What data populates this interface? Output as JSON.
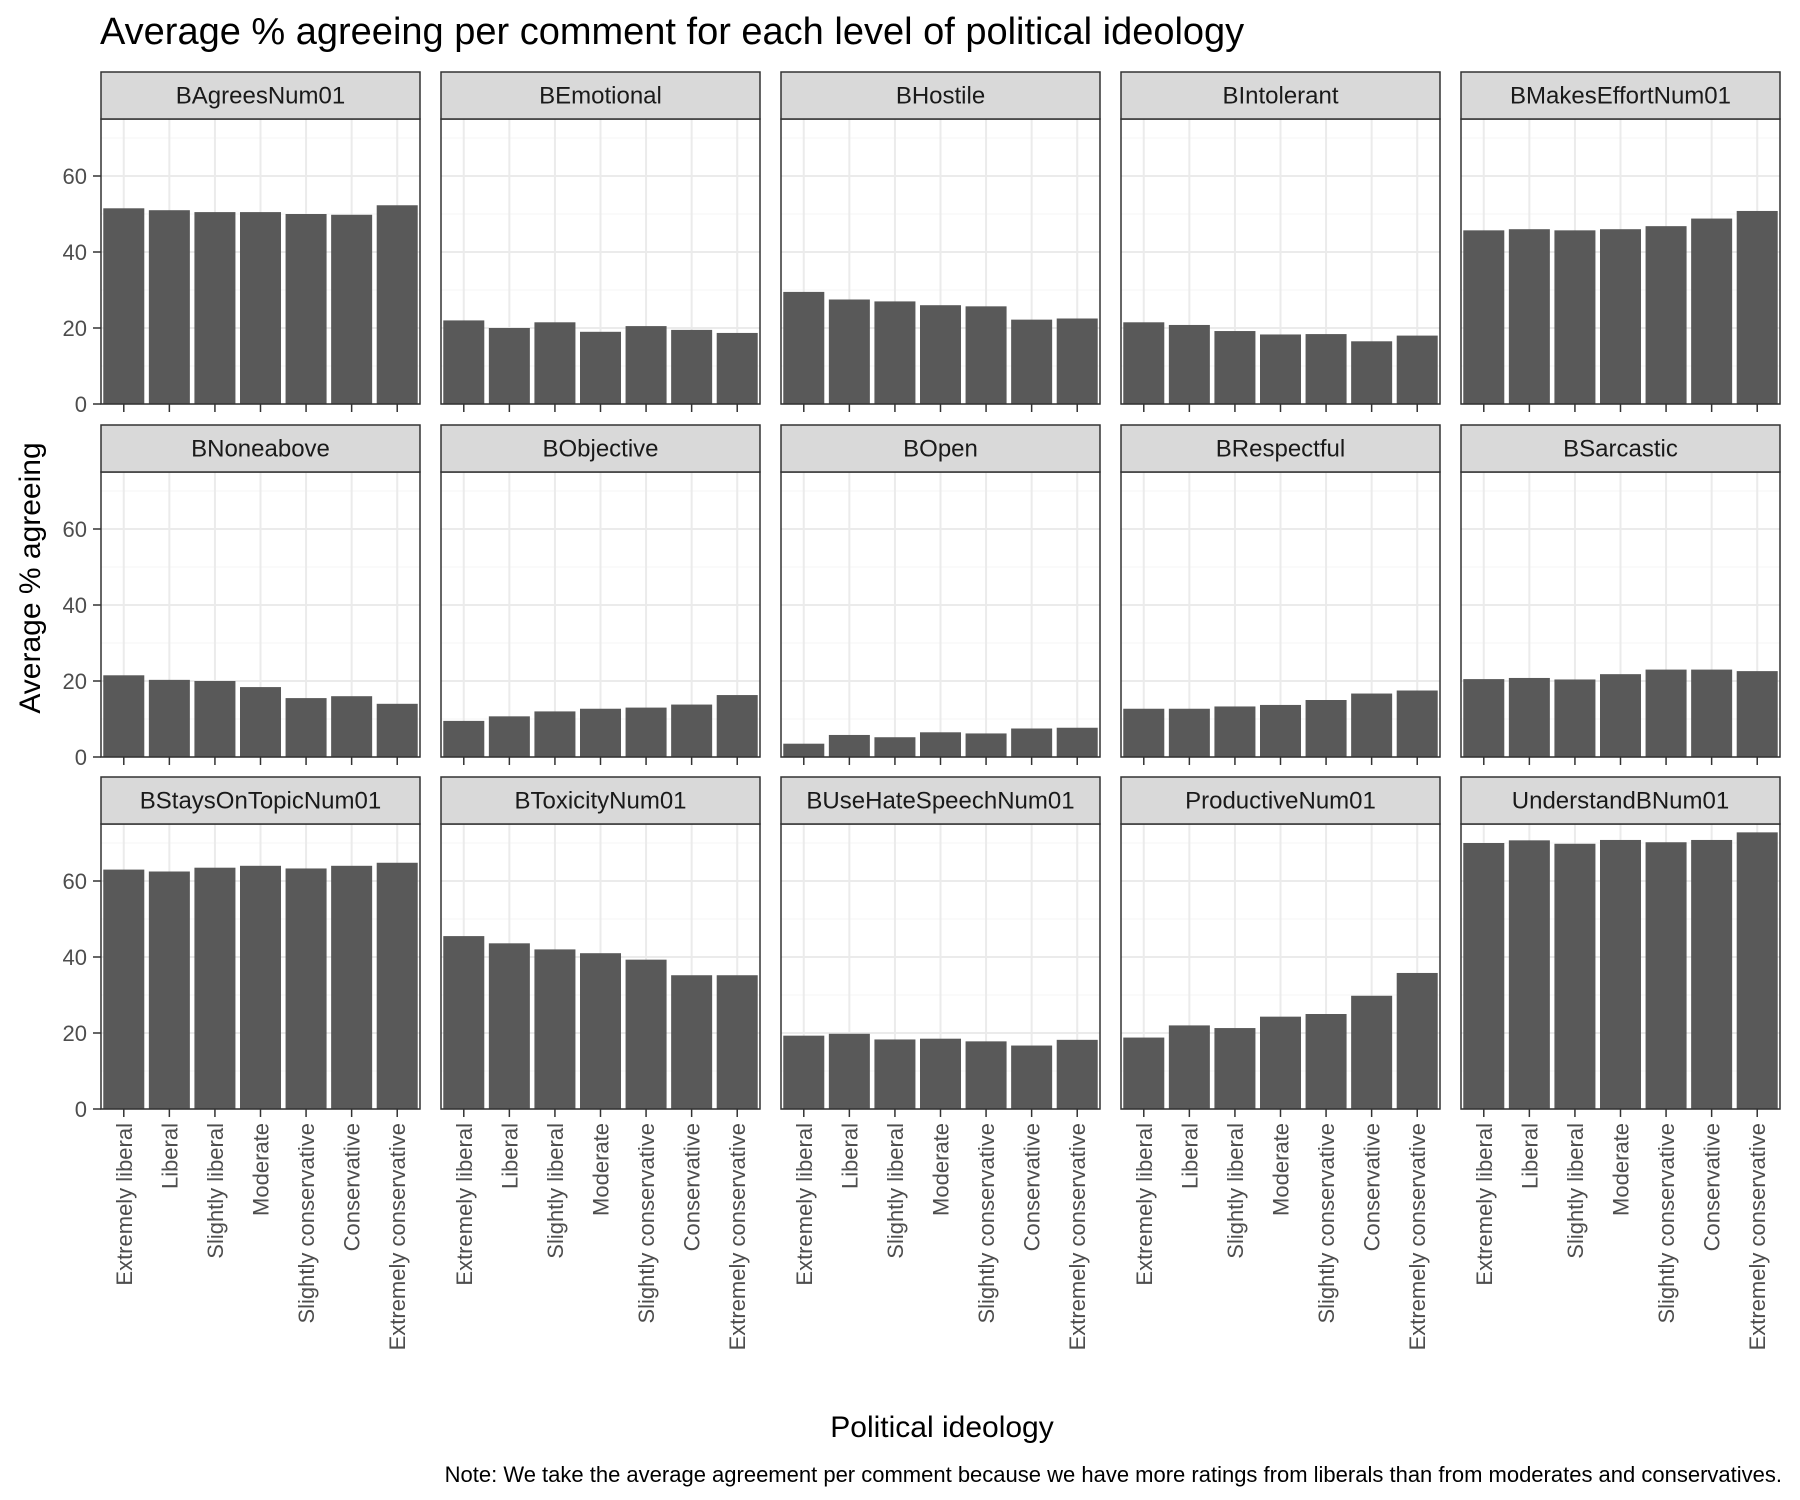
{
  "chart_data": {
    "type": "bar",
    "title": "Average % agreeing per comment for each level of political ideology",
    "xlabel": "Political ideology",
    "ylabel": "Average % agreeing",
    "caption": "Note: We take the average agreement per comment because we have more ratings from liberals than from moderates and conservatives.",
    "categories": [
      "Extremely liberal",
      "Liberal",
      "Slightly liberal",
      "Moderate",
      "Slightly conservative",
      "Conservative",
      "Extremely conservative"
    ],
    "ylim": [
      0,
      75
    ],
    "yticks": [
      0,
      20,
      40,
      60
    ],
    "grid": true,
    "colors": {
      "bar": "#595959",
      "strip_fill": "#d9d9d9",
      "panel_border": "#333333",
      "grid_major": "#ebebeb",
      "grid_minor": "#f5f5f5"
    },
    "facets": [
      {
        "name": "BAgreesNum01",
        "values": [
          51.5,
          51.0,
          50.5,
          50.5,
          50.0,
          49.8,
          52.3
        ]
      },
      {
        "name": "BEmotional",
        "values": [
          22.0,
          20.0,
          21.5,
          19.0,
          20.5,
          19.5,
          18.7
        ]
      },
      {
        "name": "BHostile",
        "values": [
          29.5,
          27.5,
          27.0,
          26.0,
          25.7,
          22.2,
          22.5
        ]
      },
      {
        "name": "BIntolerant",
        "values": [
          21.5,
          20.8,
          19.2,
          18.3,
          18.4,
          16.5,
          18.0
        ]
      },
      {
        "name": "BMakesEffortNum01",
        "values": [
          45.7,
          46.0,
          45.7,
          46.0,
          46.8,
          48.8,
          50.8
        ]
      },
      {
        "name": "BNoneabove",
        "values": [
          21.5,
          20.3,
          20.0,
          18.4,
          15.5,
          16.0,
          14.0
        ]
      },
      {
        "name": "BObjective",
        "values": [
          9.5,
          10.7,
          12.0,
          12.7,
          13.0,
          13.8,
          16.3
        ]
      },
      {
        "name": "BOpen",
        "values": [
          3.5,
          5.8,
          5.2,
          6.5,
          6.2,
          7.5,
          7.7
        ]
      },
      {
        "name": "BRespectful",
        "values": [
          12.7,
          12.7,
          13.3,
          13.7,
          15.0,
          16.7,
          17.5
        ]
      },
      {
        "name": "BSarcastic",
        "values": [
          20.5,
          20.8,
          20.4,
          21.8,
          23.0,
          23.0,
          22.6
        ]
      },
      {
        "name": "BStaysOnTopicNum01",
        "values": [
          63.0,
          62.5,
          63.5,
          64.0,
          63.3,
          64.0,
          64.8
        ]
      },
      {
        "name": "BToxicityNum01",
        "values": [
          45.5,
          43.6,
          42.0,
          41.0,
          39.3,
          35.2,
          35.2
        ]
      },
      {
        "name": "BUseHateSpeechNum01",
        "values": [
          19.3,
          19.8,
          18.3,
          18.5,
          17.8,
          16.7,
          18.2
        ]
      },
      {
        "name": "ProductiveNum01",
        "values": [
          18.8,
          22.0,
          21.3,
          24.3,
          25.0,
          29.8,
          35.8
        ]
      },
      {
        "name": "UnderstandBNum01",
        "values": [
          70.0,
          70.7,
          69.8,
          70.8,
          70.2,
          70.8,
          72.8
        ]
      }
    ]
  }
}
